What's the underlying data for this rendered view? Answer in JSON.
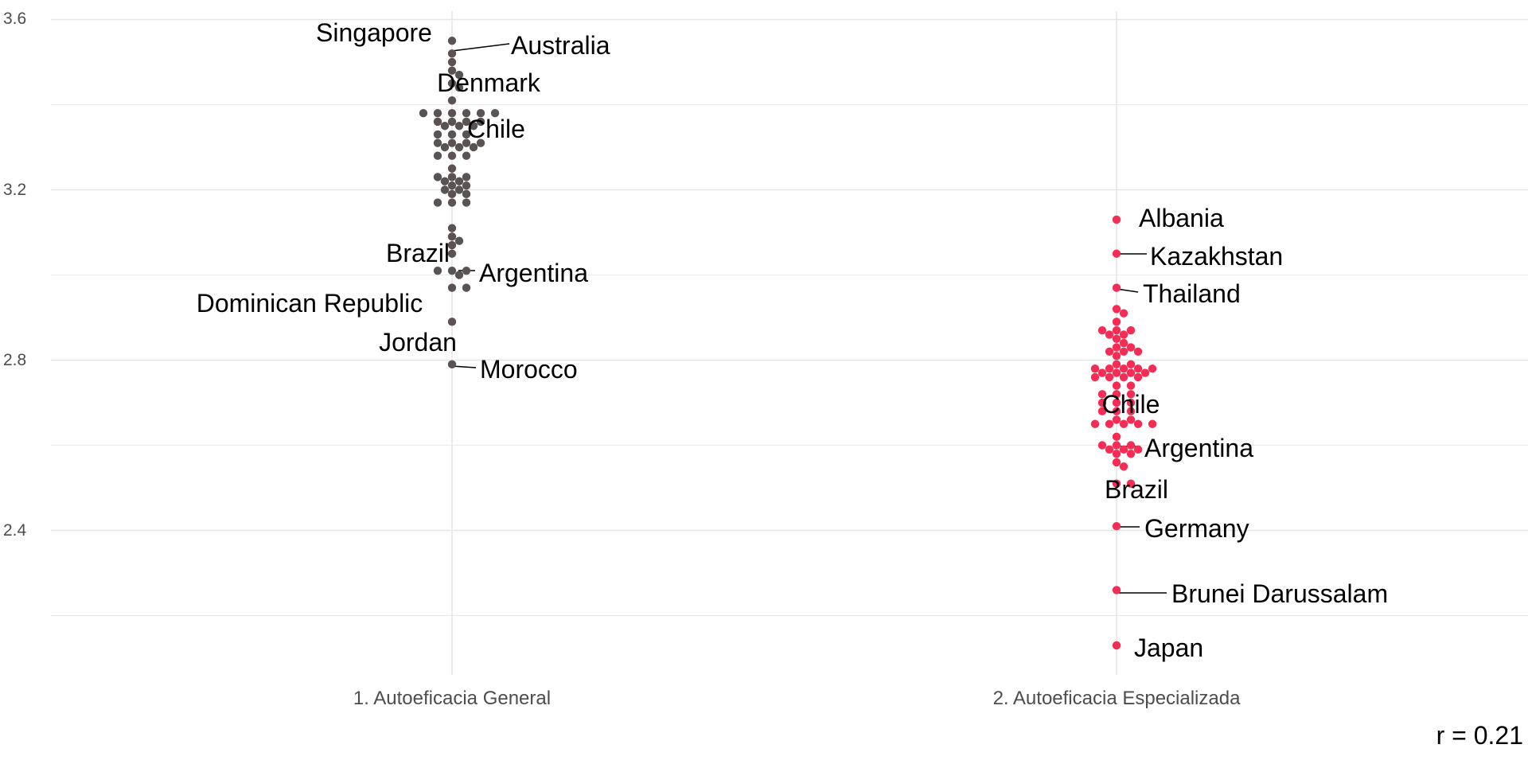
{
  "chart_data": {
    "type": "scatter",
    "subtype": "beeswarm",
    "categories": [
      "1. Autoeficacia General",
      "2. Autoeficacia Especializada"
    ],
    "ylim": [
      2.06,
      3.65
    ],
    "yticks": [
      2.4,
      2.8,
      3.2,
      3.6
    ],
    "ytick_labels": [
      "2.4",
      "2.8",
      "3.2",
      "3.6"
    ],
    "grid": true,
    "colors": [
      "#595353",
      "#f52d55"
    ],
    "series": [
      {
        "name": "1. Autoeficacia General",
        "values": [
          3.55,
          3.52,
          3.5,
          3.48,
          3.47,
          3.45,
          3.44,
          3.41,
          3.38,
          3.38,
          3.38,
          3.38,
          3.38,
          3.38,
          3.36,
          3.36,
          3.36,
          3.36,
          3.35,
          3.35,
          3.35,
          3.33,
          3.33,
          3.33,
          3.31,
          3.31,
          3.31,
          3.31,
          3.3,
          3.3,
          3.3,
          3.28,
          3.28,
          3.28,
          3.25,
          3.23,
          3.23,
          3.23,
          3.22,
          3.22,
          3.21,
          3.21,
          3.2,
          3.2,
          3.19,
          3.19,
          3.17,
          3.17,
          3.17,
          3.11,
          3.09,
          3.08,
          3.07,
          3.05,
          3.01,
          3.01,
          3.01,
          3.0,
          2.97,
          2.97,
          2.89,
          2.79
        ]
      },
      {
        "name": "2. Autoeficacia Especializada",
        "values": [
          3.13,
          3.05,
          2.97,
          2.92,
          2.91,
          2.89,
          2.87,
          2.87,
          2.87,
          2.86,
          2.86,
          2.85,
          2.84,
          2.83,
          2.83,
          2.82,
          2.82,
          2.82,
          2.81,
          2.79,
          2.79,
          2.78,
          2.78,
          2.78,
          2.78,
          2.78,
          2.77,
          2.77,
          2.77,
          2.77,
          2.76,
          2.76,
          2.76,
          2.76,
          2.74,
          2.74,
          2.72,
          2.72,
          2.72,
          2.7,
          2.7,
          2.7,
          2.68,
          2.68,
          2.68,
          2.66,
          2.66,
          2.65,
          2.65,
          2.65,
          2.65,
          2.65,
          2.62,
          2.6,
          2.6,
          2.6,
          2.59,
          2.59,
          2.59,
          2.58,
          2.58,
          2.56,
          2.55,
          2.51,
          2.51,
          2.41,
          2.26,
          2.13
        ]
      }
    ],
    "annotations": {
      "general": [
        "Singapore",
        "Australia",
        "Denmark",
        "Chile",
        "Brazil",
        "Argentina",
        "Dominican Republic",
        "Jordan",
        "Morocco"
      ],
      "especializada": [
        "Albania",
        "Kazakhstan",
        "Thailand",
        "Chile",
        "Argentina",
        "Brazil",
        "Germany",
        "Brunei Darussalam",
        "Japan"
      ]
    },
    "correlation_label": "r = 0.21"
  }
}
